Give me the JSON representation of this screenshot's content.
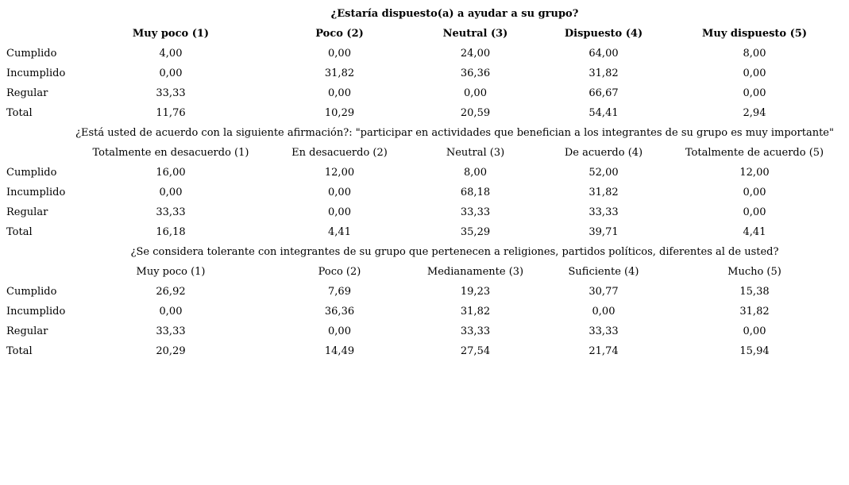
{
  "colors": {
    "background": "#ffffff",
    "text": "#000000"
  },
  "sections": [
    {
      "title": "¿Estaría dispuesto(a) a ayudar a su grupo?",
      "columns": [
        "Muy poco (1)",
        "Poco (2)",
        "Neutral (3)",
        "Dispuesto (4)",
        "Muy dispuesto (5)"
      ],
      "rows": [
        {
          "label": "Cumplido",
          "values": [
            "4,00",
            "0,00",
            "24,00",
            "64,00",
            "8,00"
          ]
        },
        {
          "label": "Incumplido",
          "values": [
            "0,00",
            "31,82",
            "36,36",
            "31,82",
            "0,00"
          ]
        },
        {
          "label": "Regular",
          "values": [
            "33,33",
            "0,00",
            "0,00",
            "66,67",
            "0,00"
          ]
        },
        {
          "label": "Total",
          "values": [
            "11,76",
            "10,29",
            "20,59",
            "54,41",
            "2,94"
          ]
        }
      ]
    },
    {
      "title": "¿Está usted de acuerdo con la siguiente afirmación?: \"participar en actividades que benefician a los integrantes de su grupo es muy importante\"",
      "columns": [
        "Totalmente en desacuerdo (1)",
        "En desacuerdo (2)",
        "Neutral (3)",
        "De acuerdo (4)",
        "Totalmente de acuerdo (5)"
      ],
      "rows": [
        {
          "label": "Cumplido",
          "values": [
            "16,00",
            "12,00",
            "8,00",
            "52,00",
            "12,00"
          ]
        },
        {
          "label": "Incumplido",
          "values": [
            "0,00",
            "0,00",
            "68,18",
            "31,82",
            "0,00"
          ]
        },
        {
          "label": "Regular",
          "values": [
            "33,33",
            "0,00",
            "33,33",
            "33,33",
            "0,00"
          ]
        },
        {
          "label": "Total",
          "values": [
            "16,18",
            "4,41",
            "35,29",
            "39,71",
            "4,41"
          ]
        }
      ]
    },
    {
      "title": "¿Se considera tolerante con integrantes de su grupo que pertenecen a religiones, partidos políticos, diferentes al de usted?",
      "columns": [
        "Muy poco (1)",
        "Poco (2)",
        "Medianamente (3)",
        "Suficiente (4)",
        "Mucho (5)"
      ],
      "rows": [
        {
          "label": "Cumplido",
          "values": [
            "26,92",
            "7,69",
            "19,23",
            "30,77",
            "15,38"
          ]
        },
        {
          "label": "Incumplido",
          "values": [
            "0,00",
            "36,36",
            "31,82",
            "0,00",
            "31,82"
          ]
        },
        {
          "label": "Regular",
          "values": [
            "33,33",
            "0,00",
            "33,33",
            "33,33",
            "0,00"
          ]
        },
        {
          "label": "Total",
          "values": [
            "20,29",
            "14,49",
            "27,54",
            "21,74",
            "15,94"
          ]
        }
      ]
    }
  ]
}
